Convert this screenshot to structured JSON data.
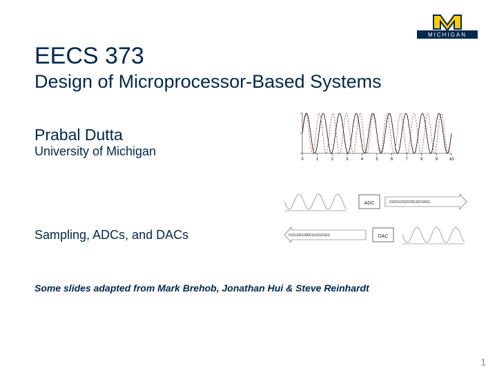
{
  "logo": {
    "banner_text": "MICHIGAN",
    "banner_bg": "#00274c",
    "banner_text_color": "#ffffff",
    "m_fill": "#ffcb05",
    "m_outline": "#00274c"
  },
  "course_number": "EECS 373",
  "course_title": "Design of Microprocessor-Based Systems",
  "author": "Prabal Dutta",
  "affiliation": "University of Michigan",
  "topic": "Sampling, ADCs, and DACs",
  "credit": "Some slides adapted from Mark Brehob, Jonathan Hui & Steve Reinhardt",
  "page_number": "1",
  "sampling_chart": {
    "type": "line",
    "xlim": [
      0,
      10
    ],
    "ylim": [
      -1,
      1
    ],
    "xticks": [
      0,
      1,
      2,
      3,
      4,
      5,
      6,
      7,
      8,
      9,
      10
    ],
    "signals": [
      {
        "name": "solid",
        "freq_hz": 0.9,
        "color": "#000000",
        "dash": null
      },
      {
        "name": "dashed",
        "freq_hz": 1.1,
        "color": "#993333",
        "dash": "2 2"
      }
    ],
    "axis_color": "#111111",
    "line_width": 0.8,
    "aspect_wh": [
      238,
      78
    ],
    "xtick_fontsize": 6
  },
  "adc_dac_diagram": {
    "type": "flowchart",
    "wave_color": "#666666",
    "box_stroke": "#444444",
    "arrow_color": "#555555",
    "rows": [
      {
        "direction": "ltr",
        "box_label": "ADC",
        "bits": "0100110110100110110011"
      },
      {
        "direction": "rtl",
        "box_label": "DAC",
        "bits": "0101100100001100110110"
      }
    ],
    "label_fontsize": 7,
    "bits_fontsize": 5,
    "aspect_wh": [
      270,
      100
    ]
  },
  "text_color": "#00274c",
  "background_color": "#ffffff"
}
